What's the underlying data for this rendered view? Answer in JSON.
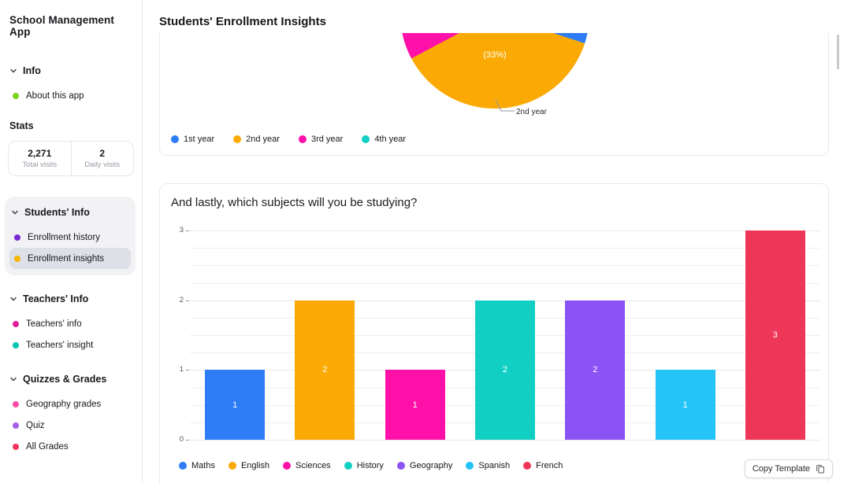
{
  "app": {
    "title": "School Management App"
  },
  "header": {
    "title": "Students' Enrollment Insights"
  },
  "sidebar": {
    "sections": [
      {
        "id": "info",
        "label": "Info",
        "highlighted": false,
        "items": [
          {
            "label": "About this app",
            "color": "#7ed321",
            "selected": false
          }
        ]
      },
      {
        "id": "students-info",
        "label": "Students' Info",
        "highlighted": true,
        "items": [
          {
            "label": "Enrollment history",
            "color": "#7a28d4",
            "selected": false
          },
          {
            "label": "Enrollment insights",
            "color": "#f7b500",
            "selected": true
          }
        ]
      },
      {
        "id": "teachers-info",
        "label": "Teachers' Info",
        "highlighted": false,
        "items": [
          {
            "label": "Teachers' info",
            "color": "#e81e9c",
            "selected": false
          },
          {
            "label": "Teachers' insight",
            "color": "#00c4ae",
            "selected": false
          }
        ]
      },
      {
        "id": "quizzes-grades",
        "label": "Quizzes & Grades",
        "highlighted": false,
        "items": [
          {
            "label": "Geography grades",
            "color": "#ff4da6",
            "selected": false
          },
          {
            "label": "Quiz",
            "color": "#a55eea",
            "selected": false
          },
          {
            "label": "All Grades",
            "color": "#f0365c",
            "selected": false
          }
        ]
      }
    ],
    "stats": {
      "heading": "Stats",
      "boxes": [
        {
          "value": "2,271",
          "label": "Total visits"
        },
        {
          "value": "2",
          "label": "Daily visits"
        }
      ]
    }
  },
  "chart_data": [
    {
      "type": "pie",
      "legend": [
        "1st year",
        "2nd year",
        "3rd year",
        "4th year"
      ],
      "colors": [
        "#2e7cf6",
        "#fbaa05",
        "#ff10a8",
        "#12cfc4"
      ],
      "known_values": {
        "2nd year": 33
      },
      "slice_label": "(33%)",
      "callout_label": "2nd year",
      "layout": {
        "visibility": "partially scrolled; only bottom of pie visible",
        "legend_position": "bottom"
      }
    },
    {
      "type": "bar",
      "title": "And lastly, which subjects will you be studying?",
      "categories": [
        "Maths",
        "English",
        "Sciences",
        "History",
        "Geography",
        "Spanish",
        "French"
      ],
      "values": [
        1,
        2,
        1,
        2,
        2,
        1,
        3
      ],
      "bar_labels": [
        "1",
        "2",
        "1",
        "2",
        "2",
        "1",
        "3"
      ],
      "colors": [
        "#2e7cf6",
        "#fbaa05",
        "#ff10a8",
        "#12cfc4",
        "#8b52f4",
        "#24c4f7",
        "#ee3659"
      ],
      "xlabel": "",
      "ylabel": "",
      "ylim": [
        0,
        3
      ],
      "yticks": [
        0,
        1,
        2,
        3
      ],
      "grid": true,
      "legend_position": "bottom"
    }
  ],
  "footer": {
    "copy_button_label": "Copy Template"
  }
}
